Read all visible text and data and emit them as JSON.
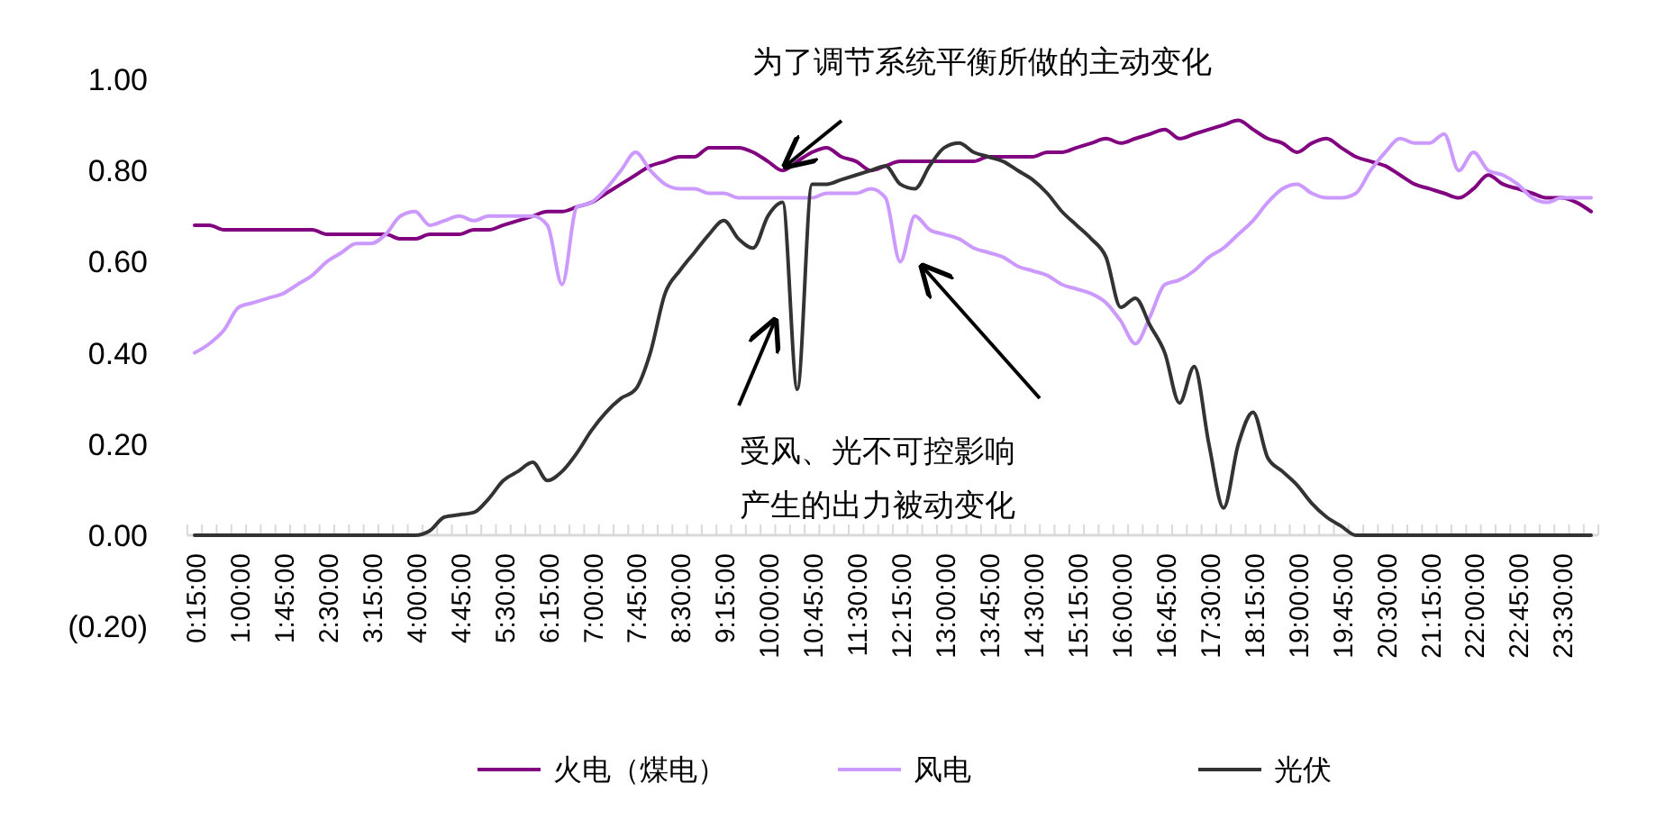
{
  "chart_data": {
    "type": "line",
    "categories": [
      "0:15:00",
      null,
      null,
      "1:00:00",
      null,
      null,
      "1:45:00",
      null,
      null,
      "2:30:00",
      null,
      null,
      "3:15:00",
      null,
      null,
      "4:00:00",
      null,
      null,
      "4:45:00",
      null,
      null,
      "5:30:00",
      null,
      null,
      "6:15:00",
      null,
      null,
      "7:00:00",
      null,
      null,
      "7:45:00",
      null,
      null,
      "8:30:00",
      null,
      null,
      "9:15:00",
      null,
      null,
      "10:00:00",
      null,
      null,
      "10:45:00",
      null,
      null,
      "11:30:00",
      null,
      null,
      "12:15:00",
      null,
      null,
      "13:00:00",
      null,
      null,
      "13:45:00",
      null,
      null,
      "14:30:00",
      null,
      null,
      "15:15:00",
      null,
      null,
      "16:00:00",
      null,
      null,
      "16:45:00",
      null,
      null,
      "17:30:00",
      null,
      null,
      "18:15:00",
      null,
      null,
      "19:00:00",
      null,
      null,
      "19:45:00",
      null,
      null,
      "20:30:00",
      null,
      null,
      "21:15:00",
      null,
      null,
      "22:00:00",
      null,
      null,
      "22:45:00",
      null,
      null,
      "23:30:00",
      null,
      null
    ],
    "series": [
      {
        "name": "火电（煤电）",
        "color": "#800080",
        "values": [
          0.68,
          0.68,
          0.67,
          0.67,
          0.67,
          0.67,
          0.67,
          0.67,
          0.67,
          0.66,
          0.66,
          0.66,
          0.66,
          0.66,
          0.65,
          0.65,
          0.66,
          0.66,
          0.66,
          0.67,
          0.67,
          0.68,
          0.69,
          0.7,
          0.71,
          0.71,
          0.72,
          0.73,
          0.75,
          0.77,
          0.79,
          0.81,
          0.82,
          0.83,
          0.83,
          0.85,
          0.85,
          0.85,
          0.84,
          0.82,
          0.8,
          0.82,
          0.84,
          0.85,
          0.83,
          0.82,
          0.8,
          0.81,
          0.82,
          0.82,
          0.82,
          0.82,
          0.82,
          0.82,
          0.83,
          0.83,
          0.83,
          0.83,
          0.84,
          0.84,
          0.85,
          0.86,
          0.87,
          0.86,
          0.87,
          0.88,
          0.89,
          0.87,
          0.88,
          0.89,
          0.9,
          0.91,
          0.89,
          0.87,
          0.86,
          0.84,
          0.86,
          0.87,
          0.85,
          0.83,
          0.82,
          0.81,
          0.79,
          0.77,
          0.76,
          0.75,
          0.74,
          0.76,
          0.79,
          0.77,
          0.76,
          0.75,
          0.74,
          0.74,
          0.73,
          0.71
        ]
      },
      {
        "name": "风电",
        "color": "#cc99ff",
        "values": [
          0.4,
          0.42,
          0.45,
          0.5,
          0.51,
          0.52,
          0.53,
          0.55,
          0.57,
          0.6,
          0.62,
          0.64,
          0.64,
          0.66,
          0.7,
          0.71,
          0.68,
          0.69,
          0.7,
          0.69,
          0.7,
          0.7,
          0.7,
          0.7,
          0.68,
          0.55,
          0.72,
          0.73,
          0.76,
          0.8,
          0.84,
          0.8,
          0.77,
          0.76,
          0.76,
          0.75,
          0.75,
          0.74,
          0.74,
          0.74,
          0.74,
          0.74,
          0.74,
          0.75,
          0.75,
          0.75,
          0.76,
          0.74,
          0.6,
          0.7,
          0.67,
          0.66,
          0.65,
          0.63,
          0.62,
          0.61,
          0.59,
          0.58,
          0.57,
          0.55,
          0.54,
          0.53,
          0.51,
          0.47,
          0.42,
          0.48,
          0.55,
          0.56,
          0.58,
          0.61,
          0.63,
          0.66,
          0.69,
          0.73,
          0.76,
          0.77,
          0.75,
          0.74,
          0.74,
          0.75,
          0.8,
          0.84,
          0.87,
          0.86,
          0.86,
          0.88,
          0.8,
          0.84,
          0.8,
          0.79,
          0.77,
          0.74,
          0.73,
          0.74,
          0.74,
          0.74
        ]
      },
      {
        "name": "光伏",
        "color": "#333333",
        "values": [
          0,
          0,
          0,
          0,
          0,
          0,
          0,
          0,
          0,
          0,
          0,
          0,
          0,
          0,
          0,
          0,
          0.01,
          0.04,
          0.045,
          0.05,
          0.08,
          0.12,
          0.14,
          0.16,
          0.12,
          0.14,
          0.18,
          0.23,
          0.27,
          0.3,
          0.32,
          0.4,
          0.53,
          0.58,
          0.62,
          0.66,
          0.69,
          0.65,
          0.63,
          0.7,
          0.73,
          0.32,
          0.77,
          0.77,
          0.78,
          0.79,
          0.8,
          0.81,
          0.77,
          0.76,
          0.81,
          0.85,
          0.86,
          0.84,
          0.83,
          0.82,
          0.8,
          0.78,
          0.75,
          0.71,
          0.68,
          0.65,
          0.61,
          0.5,
          0.52,
          0.46,
          0.4,
          0.29,
          0.37,
          0.2,
          0.06,
          0.2,
          0.27,
          0.17,
          0.14,
          0.11,
          0.07,
          0.04,
          0.02,
          0,
          0,
          0,
          0,
          0,
          0,
          0,
          0,
          0,
          0,
          0,
          0,
          0,
          0,
          0,
          0,
          0
        ]
      }
    ],
    "ylim": [
      -0.2,
      1.0
    ],
    "yticks": [
      {
        "value": -0.2,
        "label": "(0.20)"
      },
      {
        "value": 0,
        "label": "0.00"
      },
      {
        "value": 0.2,
        "label": "0.20"
      },
      {
        "value": 0.4,
        "label": "0.40"
      },
      {
        "value": 0.6,
        "label": "0.60"
      },
      {
        "value": 0.8,
        "label": "0.80"
      },
      {
        "value": 1.0,
        "label": "1.00"
      }
    ],
    "grid": false,
    "legend": "bottom",
    "marker": "none",
    "line_style": "solid",
    "annotations": [
      "为了调节系统平衡所做的主动变化",
      "受风、光不可控影响",
      "产生的出力被动变化"
    ]
  }
}
